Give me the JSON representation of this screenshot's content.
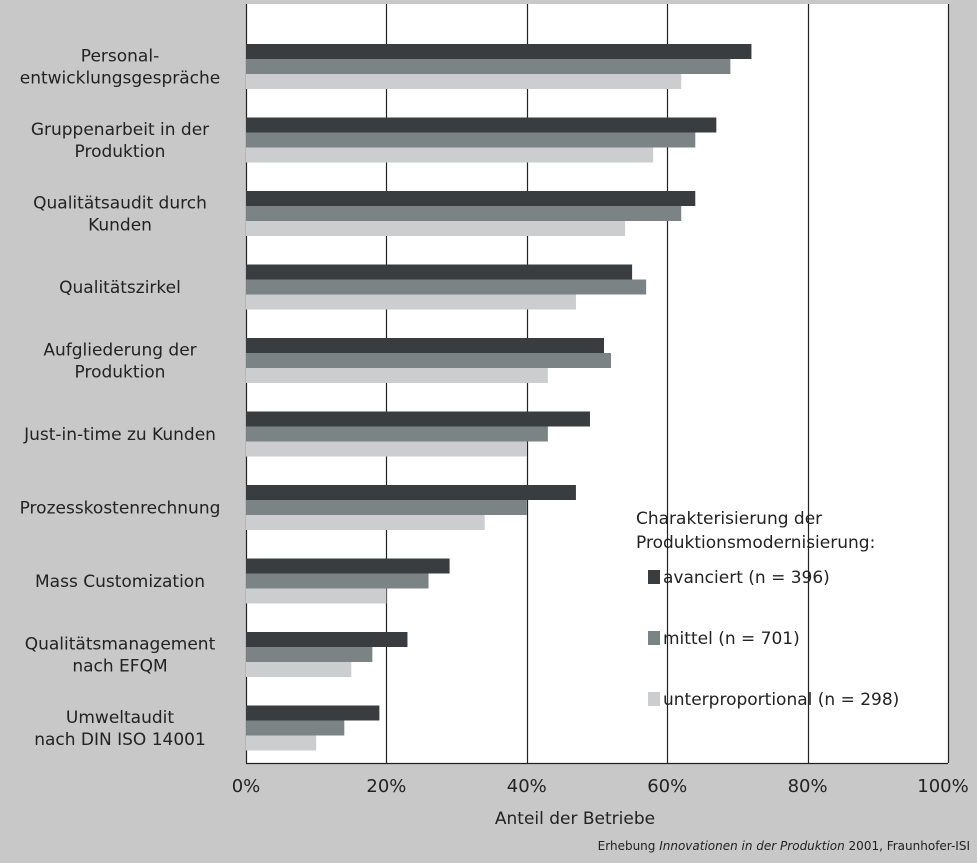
{
  "chart_data": {
    "type": "bar",
    "orientation": "horizontal",
    "categories": [
      [
        "Personal-",
        "entwicklungsgespräche"
      ],
      [
        "Gruppenarbeit in der",
        "Produktion"
      ],
      [
        "Qualitätsaudit durch",
        "Kunden"
      ],
      [
        "Qualitätszirkel"
      ],
      [
        "Aufgliederung der",
        "Produktion"
      ],
      [
        "Just-in-time zu Kunden"
      ],
      [
        "Prozesskostenrechnung"
      ],
      [
        "Mass Customization"
      ],
      [
        "Qualitätsmanagement",
        "nach EFQM"
      ],
      [
        "Umweltaudit",
        "nach DIN ISO 14001"
      ]
    ],
    "series": [
      {
        "name": "avanciert (n = 396)",
        "color": "#3a3d3f",
        "values": [
          72,
          67,
          64,
          55,
          51,
          49,
          47,
          29,
          23,
          19
        ]
      },
      {
        "name": "mittel (n = 701)",
        "color": "#7c8385",
        "values": [
          69,
          64,
          62,
          57,
          52,
          43,
          40,
          26,
          18,
          14
        ]
      },
      {
        "name": "unterproportional (n = 298)",
        "color": "#cbcdce",
        "values": [
          62,
          58,
          54,
          47,
          43,
          40,
          34,
          20,
          15,
          10
        ]
      }
    ],
    "xlim": [
      0,
      100
    ],
    "xticks": [
      "0%",
      "20%",
      "40%",
      "60%",
      "80%",
      "100%"
    ],
    "xlabel": "Anteil der Betriebe",
    "legend_title": [
      "Charakterisierung der",
      "Produktionsmodernisierung:"
    ],
    "legend_position": "bottom-right",
    "grid": "vertical"
  },
  "footer": {
    "prefix": "Erhebung ",
    "italic": "Innovationen in der Produktion",
    "suffix": " 2001, Fraunhofer-ISI"
  }
}
